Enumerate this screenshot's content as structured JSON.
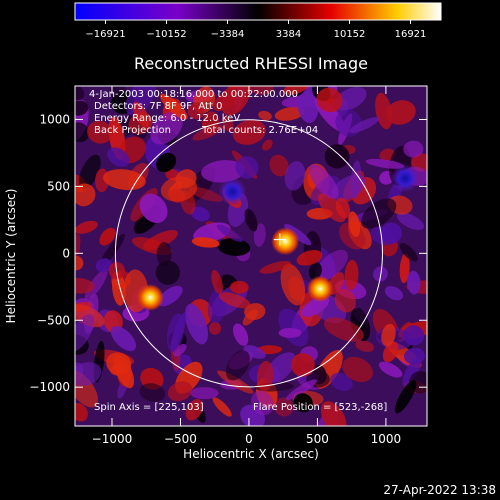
{
  "colorbar": {
    "tick_labels": [
      "−16921",
      "−10152",
      "−3384",
      "3384",
      "10152",
      "16921"
    ],
    "colors": [
      "#0000ff",
      "#7a00c8",
      "#000000",
      "#e60000",
      "#ffcc00",
      "#ffffff"
    ]
  },
  "title": "Reconstructed RHESSI Image",
  "info": {
    "time": "4-Jan-2003 00:18:16.000 to 00:22:00.000",
    "detectors": "Detectors: 7F 8F 9F, Att 0",
    "energy": "Energy Range: 6.0 - 12.0 keV",
    "method": "Back Projection",
    "counts": "Total counts: 2.76E+04",
    "spin_axis": "Spin Axis = [225,103]",
    "flare_position": "Flare Position = [523,-268]"
  },
  "axes": {
    "xlabel": "Heliocentric X (arcsec)",
    "ylabel": "Heliocentric Y (arcsec)",
    "x_ticks": [
      -1000,
      -500,
      0,
      500,
      1000
    ],
    "y_ticks": [
      1000,
      500,
      0,
      -500,
      -1000
    ],
    "x_tick_labels": [
      "−1000",
      "−500",
      "0",
      "500",
      "1000"
    ],
    "y_tick_labels": [
      "1000",
      "500",
      "0",
      "−500",
      "−1000"
    ],
    "xlim": [
      -1270,
      1300
    ],
    "ylim": [
      -1290,
      1250
    ]
  },
  "solar_disk": {
    "center": [
      0,
      0
    ],
    "radius_arcsec": 975
  },
  "spin_axis_marker": [
    225,
    103
  ],
  "bright_sources": [
    {
      "x": 265,
      "y": 90,
      "level": 1.0
    },
    {
      "x": 520,
      "y": -265,
      "level": 0.85
    },
    {
      "x": -720,
      "y": -330,
      "level": 0.9
    }
  ],
  "dark_spots": [
    {
      "x": -120,
      "y": 460
    },
    {
      "x": 1140,
      "y": 560
    }
  ],
  "timestamp": "27-Apr-2022 13:38"
}
